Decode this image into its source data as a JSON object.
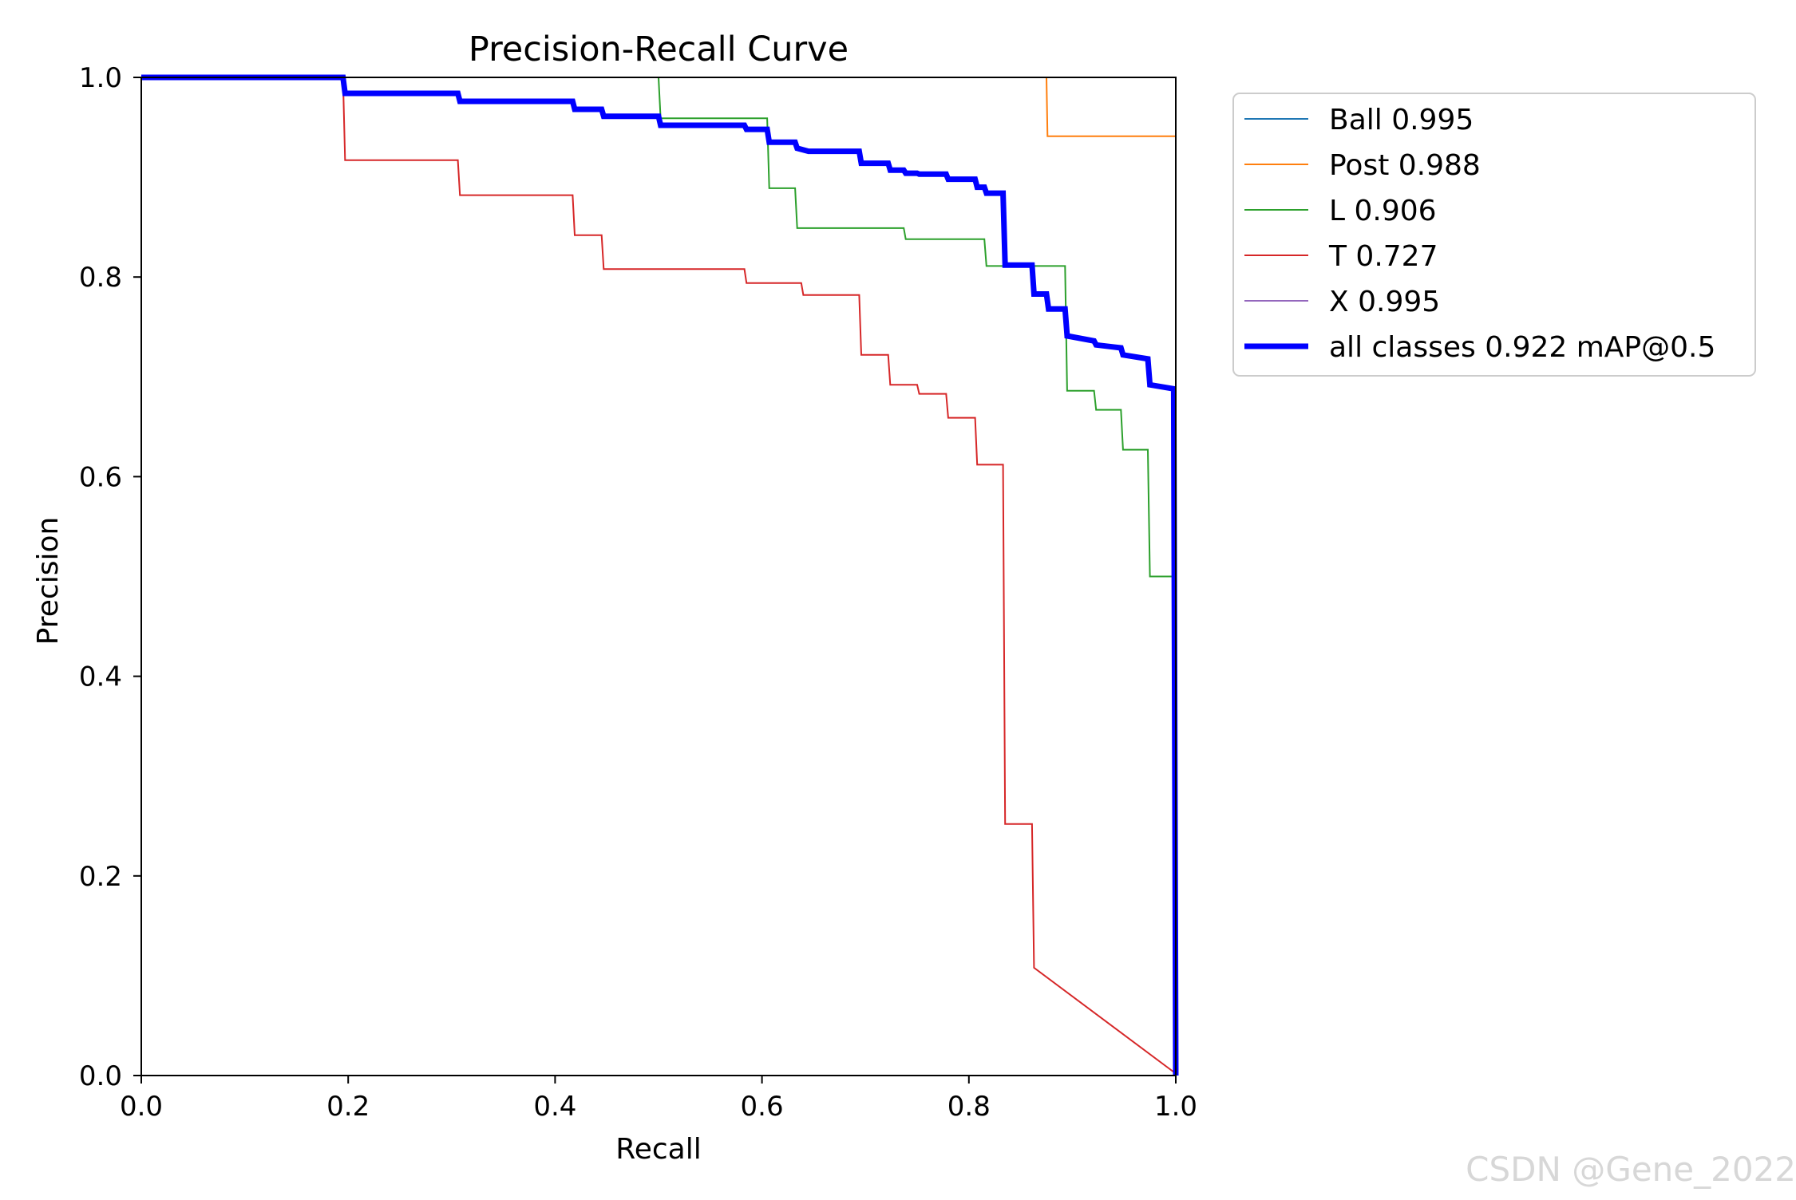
{
  "watermark": "CSDN @Gene_2022",
  "chart_data": {
    "type": "line",
    "title": "Precision-Recall Curve",
    "xlabel": "Recall",
    "ylabel": "Precision",
    "xlim": [
      0,
      1
    ],
    "ylim": [
      0,
      1
    ],
    "xticks": [
      "0.0",
      "0.2",
      "0.4",
      "0.6",
      "0.8",
      "1.0"
    ],
    "yticks": [
      "0.0",
      "0.2",
      "0.4",
      "0.6",
      "0.8",
      "1.0"
    ],
    "grid": false,
    "legend_position": "outside-top-right",
    "series": [
      {
        "name": "Ball 0.995",
        "color": "#1f77b4",
        "line_width": 2,
        "points": [
          [
            0,
            1
          ],
          [
            1.0,
            1.0
          ],
          [
            1.0,
            0
          ]
        ]
      },
      {
        "name": "Post 0.988",
        "color": "#ff7f0e",
        "line_width": 2,
        "points": [
          [
            0,
            1
          ],
          [
            0.875,
            1.0
          ],
          [
            0.876,
            0.941
          ],
          [
            1.0,
            0.941
          ],
          [
            1.0,
            0
          ]
        ]
      },
      {
        "name": "L 0.906",
        "color": "#2ca02c",
        "line_width": 2,
        "points": [
          [
            0,
            1
          ],
          [
            0.5,
            1.0
          ],
          [
            0.502,
            0.959
          ],
          [
            0.605,
            0.959
          ],
          [
            0.607,
            0.889
          ],
          [
            0.632,
            0.889
          ],
          [
            0.634,
            0.849
          ],
          [
            0.737,
            0.849
          ],
          [
            0.739,
            0.838
          ],
          [
            0.815,
            0.838
          ],
          [
            0.817,
            0.811
          ],
          [
            0.893,
            0.811
          ],
          [
            0.895,
            0.686
          ],
          [
            0.921,
            0.686
          ],
          [
            0.923,
            0.667
          ],
          [
            0.947,
            0.667
          ],
          [
            0.949,
            0.627
          ],
          [
            0.973,
            0.627
          ],
          [
            0.975,
            0.5
          ],
          [
            0.998,
            0.5
          ],
          [
            1.0,
            0
          ]
        ]
      },
      {
        "name": "T 0.727",
        "color": "#d62728",
        "line_width": 2,
        "points": [
          [
            0,
            1
          ],
          [
            0.195,
            1.0
          ],
          [
            0.197,
            0.917
          ],
          [
            0.306,
            0.917
          ],
          [
            0.308,
            0.882
          ],
          [
            0.417,
            0.882
          ],
          [
            0.419,
            0.842
          ],
          [
            0.445,
            0.842
          ],
          [
            0.447,
            0.808
          ],
          [
            0.583,
            0.808
          ],
          [
            0.585,
            0.794
          ],
          [
            0.638,
            0.794
          ],
          [
            0.64,
            0.782
          ],
          [
            0.694,
            0.782
          ],
          [
            0.696,
            0.722
          ],
          [
            0.722,
            0.722
          ],
          [
            0.724,
            0.692
          ],
          [
            0.75,
            0.692
          ],
          [
            0.752,
            0.683
          ],
          [
            0.778,
            0.683
          ],
          [
            0.78,
            0.659
          ],
          [
            0.806,
            0.659
          ],
          [
            0.808,
            0.612
          ],
          [
            0.833,
            0.612
          ],
          [
            0.835,
            0.252
          ],
          [
            0.861,
            0.252
          ],
          [
            0.863,
            0.108
          ],
          [
            1.0,
            0.002
          ]
        ]
      },
      {
        "name": "X 0.995",
        "color": "#9467bd",
        "line_width": 2,
        "points": [
          [
            0,
            1
          ],
          [
            1.0,
            1.0
          ],
          [
            1.0,
            0
          ]
        ]
      },
      {
        "name": "all classes 0.922 mAP@0.5",
        "color": "#0000ff",
        "line_width": 7,
        "points": [
          [
            0,
            1
          ],
          [
            0.195,
            1.0
          ],
          [
            0.197,
            0.984
          ],
          [
            0.306,
            0.984
          ],
          [
            0.308,
            0.976
          ],
          [
            0.417,
            0.976
          ],
          [
            0.419,
            0.968
          ],
          [
            0.445,
            0.968
          ],
          [
            0.447,
            0.961
          ],
          [
            0.5,
            0.961
          ],
          [
            0.502,
            0.952
          ],
          [
            0.583,
            0.952
          ],
          [
            0.585,
            0.948
          ],
          [
            0.605,
            0.948
          ],
          [
            0.607,
            0.935
          ],
          [
            0.632,
            0.935
          ],
          [
            0.634,
            0.929
          ],
          [
            0.645,
            0.926
          ],
          [
            0.694,
            0.926
          ],
          [
            0.696,
            0.914
          ],
          [
            0.722,
            0.914
          ],
          [
            0.724,
            0.907
          ],
          [
            0.737,
            0.907
          ],
          [
            0.739,
            0.904
          ],
          [
            0.75,
            0.904
          ],
          [
            0.752,
            0.903
          ],
          [
            0.778,
            0.903
          ],
          [
            0.78,
            0.898
          ],
          [
            0.806,
            0.898
          ],
          [
            0.808,
            0.89
          ],
          [
            0.815,
            0.89
          ],
          [
            0.817,
            0.884
          ],
          [
            0.833,
            0.884
          ],
          [
            0.835,
            0.812
          ],
          [
            0.861,
            0.812
          ],
          [
            0.863,
            0.783
          ],
          [
            0.875,
            0.783
          ],
          [
            0.877,
            0.768
          ],
          [
            0.893,
            0.768
          ],
          [
            0.895,
            0.741
          ],
          [
            0.921,
            0.736
          ],
          [
            0.923,
            0.732
          ],
          [
            0.947,
            0.729
          ],
          [
            0.949,
            0.722
          ],
          [
            0.973,
            0.718
          ],
          [
            0.975,
            0.692
          ],
          [
            0.998,
            0.688
          ],
          [
            1.0,
            0
          ]
        ]
      }
    ]
  }
}
